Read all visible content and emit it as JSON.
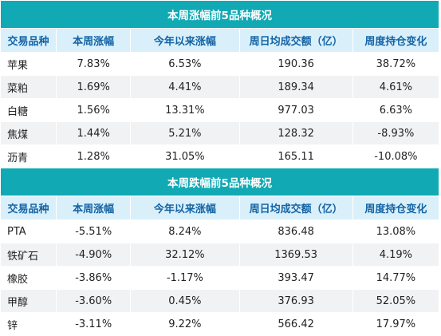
{
  "gainers": {
    "title": "本周涨幅前5品种概况",
    "headers": [
      "交易品种",
      "本周涨幅",
      "今年以来涨幅",
      "周日均成交额（亿）",
      "周度持仓变化"
    ],
    "rows": [
      [
        "苹果",
        "7.83%",
        "6.53%",
        "190.36",
        "38.72%"
      ],
      [
        "菜粕",
        "1.69%",
        "4.41%",
        "189.34",
        "4.61%"
      ],
      [
        "白糖",
        "1.56%",
        "13.31%",
        "977.03",
        "6.63%"
      ],
      [
        "焦煤",
        "1.44%",
        "5.21%",
        "128.32",
        "-8.93%"
      ],
      [
        "沥青",
        "1.28%",
        "31.05%",
        "165.11",
        "-10.08%"
      ]
    ]
  },
  "losers": {
    "title": "本周跌幅前5品种概况",
    "headers": [
      "交易品种",
      "本周涨幅",
      "今年以来涨幅",
      "周日均成交额（亿）",
      "周度持仓变化"
    ],
    "rows": [
      [
        "PTA",
        "-5.51%",
        "8.24%",
        "836.48",
        "13.08%"
      ],
      [
        "铁矿石",
        "-4.90%",
        "32.12%",
        "1369.53",
        "4.19%"
      ],
      [
        "橡胶",
        "-3.86%",
        "-1.17%",
        "393.47",
        "14.77%"
      ],
      [
        "甲醇",
        "-3.60%",
        "0.45%",
        "376.93",
        "52.05%"
      ],
      [
        "锌",
        "-3.11%",
        "9.22%",
        "566.42",
        "17.97%"
      ]
    ]
  },
  "colors": {
    "title_bg": "#11a9b4",
    "header_bg": "#d9f0fb",
    "header_text": "#1463a4",
    "alt_row": "#f1f2f4"
  }
}
